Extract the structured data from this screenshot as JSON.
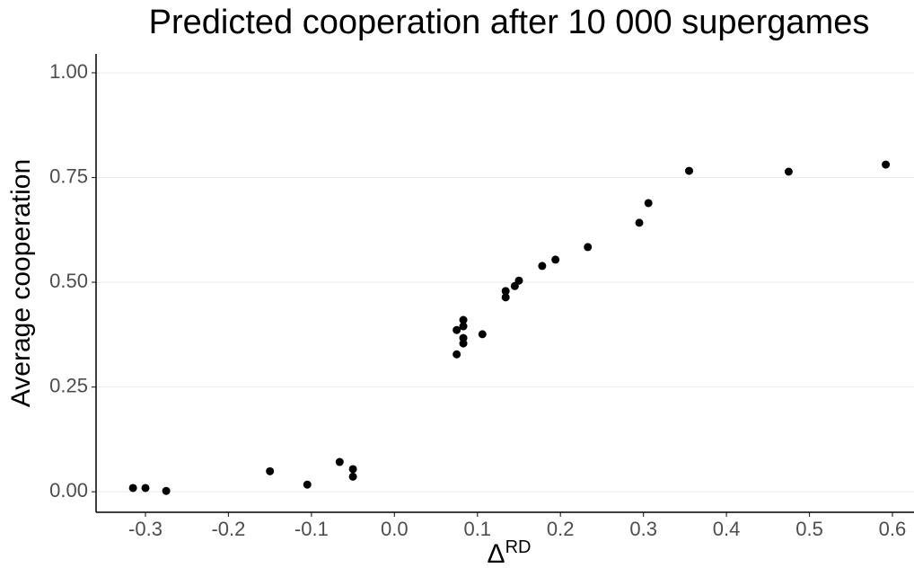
{
  "chart_data": {
    "type": "scatter",
    "title": "Predicted cooperation after 10 000 supergames",
    "x_label": {
      "base": "Δ",
      "superscript": "RD"
    },
    "y_label": "Average cooperation",
    "color": "#000000",
    "grid": true,
    "x": [
      -0.315,
      -0.3,
      -0.275,
      -0.15,
      -0.105,
      -0.066,
      -0.05,
      -0.05,
      0.075,
      0.075,
      0.083,
      0.083,
      0.083,
      0.083,
      0.106,
      0.134,
      0.134,
      0.145,
      0.15,
      0.178,
      0.194,
      0.233,
      0.295,
      0.306,
      0.355,
      0.475,
      0.592
    ],
    "values": [
      0.009,
      0.009,
      0.002,
      0.049,
      0.017,
      0.071,
      0.054,
      0.036,
      0.328,
      0.386,
      0.41,
      0.395,
      0.367,
      0.354,
      0.376,
      0.479,
      0.464,
      0.491,
      0.504,
      0.539,
      0.554,
      0.584,
      0.642,
      0.689,
      0.766,
      0.764,
      0.781
    ],
    "xlim": [
      -0.3595,
      0.626
    ],
    "ylim": [
      -0.049,
      1.045
    ],
    "xticks": [
      -0.3,
      -0.2,
      -0.1,
      {
        "value": 0,
        "label": "0.0"
      },
      0.1,
      0.2,
      0.3,
      0.4,
      0.5,
      0.6
    ],
    "yticks": [
      {
        "value": 0,
        "label": "0.00"
      },
      {
        "value": 0.25,
        "label": "0.25"
      },
      {
        "value": 0.5,
        "label": "0.50"
      },
      {
        "value": 0.75,
        "label": "0.75"
      },
      {
        "value": 1,
        "label": "1.00"
      }
    ]
  }
}
